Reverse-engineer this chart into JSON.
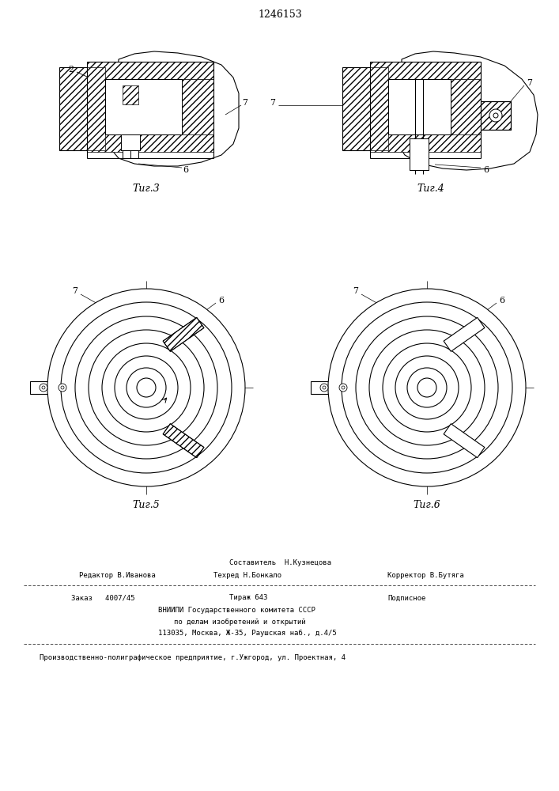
{
  "patent_number": "1246153",
  "bg_color": "#ffffff",
  "line_color": "#000000",
  "fig3_caption": "Τиг.3",
  "fig4_caption": "Τиг.4",
  "fig5_caption": "Τиг.5",
  "fig6_caption": "Τиг.6",
  "footer_composer": "Составитель  Н.Кузнецова",
  "footer_editor": "Редактор В.Иванова",
  "footer_tech": "Техред Н.Бонкало",
  "footer_corrector": "Корректор В.Бутяга",
  "footer_order": "Заказ   4007/45",
  "footer_tirazh": "Тираж 643",
  "footer_podp": "Подписное",
  "footer_vniip": "ВНИИПИ Государственного комитета СССР",
  "footer_dela": "по делам изобретений и открытий",
  "footer_addr": "113035, Москва, Ж-35, Раушская наб., д.4/5",
  "footer_prod": "Производственно-полиграфическое предприятие, г.Ужгород, ул. Проектная, 4",
  "font_size_patent": 9,
  "font_size_caption": 9,
  "font_size_footer": 7,
  "font_size_label": 8
}
